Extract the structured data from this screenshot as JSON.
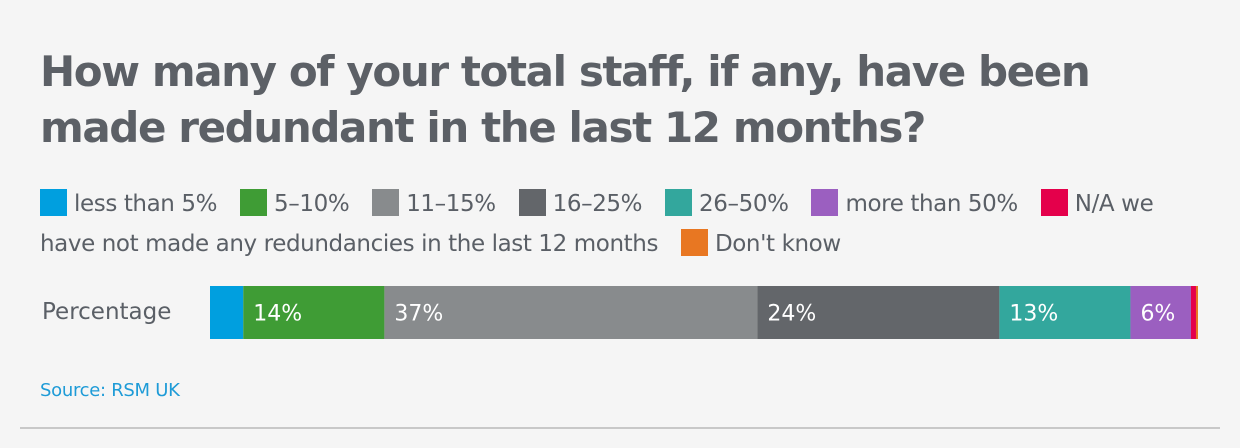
{
  "title": "How many of your total staff, if any, have been made redundant in the last 12 months?",
  "legend": [
    {
      "label": "less than 5%",
      "color": "#009fdf"
    },
    {
      "label": "5–10%",
      "color": "#3f9c35"
    },
    {
      "label": "11–15%",
      "color": "#888b8d"
    },
    {
      "label": "16–25%",
      "color": "#63666a"
    },
    {
      "label": "26–50%",
      "color": "#33a79d"
    },
    {
      "label": "more than 50%",
      "color": "#9b5fc0"
    },
    {
      "label": "N/A we have not made any redundancies in the last 12 months",
      "color": "#e4004b"
    },
    {
      "label": "Don't know",
      "color": "#e87722"
    }
  ],
  "source": "Source: RSM UK",
  "chart_data": {
    "type": "bar",
    "orientation": "horizontal",
    "stacked": true,
    "categories": [
      "Percentage"
    ],
    "xlim": [
      0,
      100
    ],
    "series": [
      {
        "name": "less than 5%",
        "values": [
          3.3
        ],
        "color": "#009fdf",
        "label": ""
      },
      {
        "name": "5–10%",
        "values": [
          14
        ],
        "color": "#3f9c35",
        "label": "14%"
      },
      {
        "name": "11–15%",
        "values": [
          37
        ],
        "color": "#888b8d",
        "label": "37%"
      },
      {
        "name": "16–25%",
        "values": [
          24
        ],
        "color": "#63666a",
        "label": "24%"
      },
      {
        "name": "26–50%",
        "values": [
          13
        ],
        "color": "#33a79d",
        "label": "13%"
      },
      {
        "name": "more than 50%",
        "values": [
          6
        ],
        "color": "#9b5fc0",
        "label": "6%"
      },
      {
        "name": "N/A we have not made any redundancies in the last 12 months",
        "values": [
          0.5
        ],
        "color": "#e4004b",
        "label": ""
      },
      {
        "name": "Don't know",
        "values": [
          0.2
        ],
        "color": "#e87722",
        "label": ""
      }
    ]
  }
}
